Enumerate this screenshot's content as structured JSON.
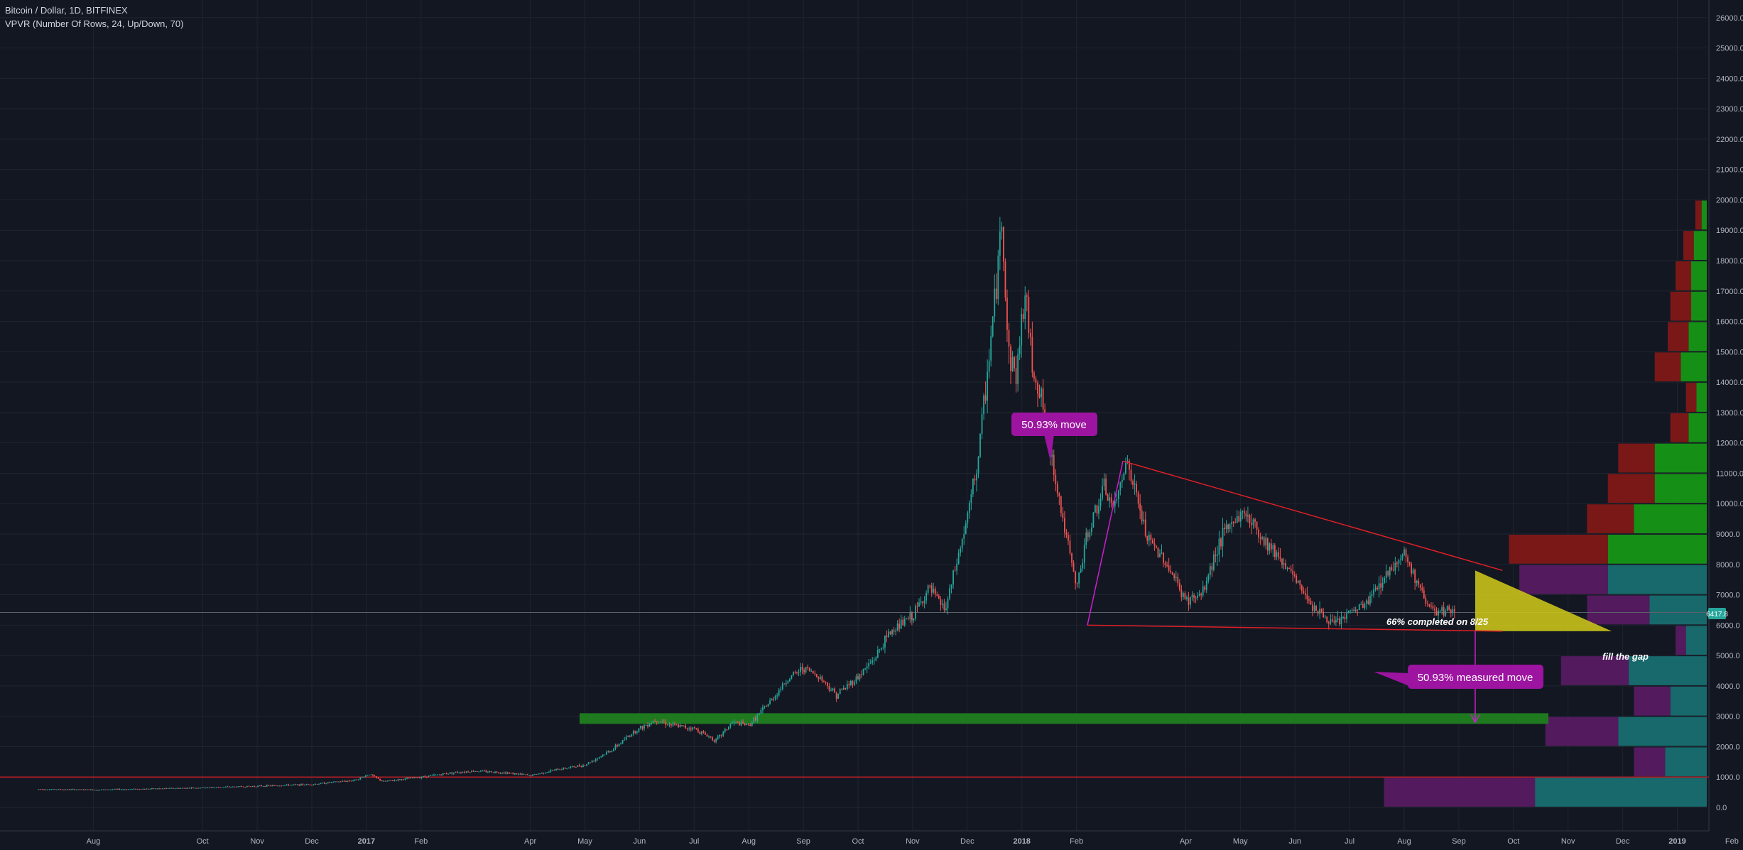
{
  "header": {
    "title": "Bitcoin / Dollar, 1D, BITFINEX",
    "indicator": "VPVR (Number Of Rows, 24, Up/Down, 70)"
  },
  "chart_data": {
    "type": "candlestick",
    "title": "Bitcoin / Dollar, 1D, BITFINEX",
    "ylim": [
      -800,
      26900
    ],
    "y_ticks": [
      0,
      1000,
      2000,
      3000,
      4000,
      5000,
      6000,
      7000,
      8000,
      9000,
      10000,
      11000,
      12000,
      13000,
      14000,
      15000,
      16000,
      17000,
      18000,
      19000,
      20000,
      21000,
      22000,
      23000,
      24000,
      25000,
      26000
    ],
    "x_ticks": [
      {
        "label": "Aug",
        "t": 1.0
      },
      {
        "label": "Oct",
        "t": 3.0
      },
      {
        "label": "Nov",
        "t": 4.0
      },
      {
        "label": "Dec",
        "t": 5.0
      },
      {
        "label": "2017",
        "t": 6.0,
        "bold": true
      },
      {
        "label": "Feb",
        "t": 7.0
      },
      {
        "label": "Apr",
        "t": 9.0
      },
      {
        "label": "May",
        "t": 10.0
      },
      {
        "label": "Jun",
        "t": 11.0
      },
      {
        "label": "Jul",
        "t": 12.0
      },
      {
        "label": "Aug",
        "t": 13.0
      },
      {
        "label": "Sep",
        "t": 14.0
      },
      {
        "label": "Oct",
        "t": 15.0
      },
      {
        "label": "Nov",
        "t": 16.0
      },
      {
        "label": "Dec",
        "t": 17.0
      },
      {
        "label": "2018",
        "t": 18.0,
        "bold": true
      },
      {
        "label": "Feb",
        "t": 19.0
      },
      {
        "label": "Apr",
        "t": 21.0
      },
      {
        "label": "May",
        "t": 22.0
      },
      {
        "label": "Jun",
        "t": 23.0
      },
      {
        "label": "Jul",
        "t": 24.0
      },
      {
        "label": "Aug",
        "t": 25.0
      },
      {
        "label": "Sep",
        "t": 26.0
      },
      {
        "label": "Oct",
        "t": 27.0
      },
      {
        "label": "Nov",
        "t": 28.0
      },
      {
        "label": "Dec",
        "t": 29.0
      },
      {
        "label": "2019",
        "t": 30.0,
        "bold": true
      },
      {
        "label": "Feb",
        "t": 31.0
      }
    ],
    "price_path": [
      [
        0.0,
        600
      ],
      [
        1.0,
        580
      ],
      [
        2.0,
        610
      ],
      [
        3.0,
        650
      ],
      [
        4.0,
        700
      ],
      [
        5.0,
        760
      ],
      [
        5.8,
        900
      ],
      [
        6.05,
        1100
      ],
      [
        6.3,
        850
      ],
      [
        7.0,
        1000
      ],
      [
        7.6,
        1150
      ],
      [
        8.0,
        1200
      ],
      [
        8.5,
        1150
      ],
      [
        9.0,
        1050
      ],
      [
        9.5,
        1250
      ],
      [
        10.0,
        1400
      ],
      [
        10.5,
        1900
      ],
      [
        10.9,
        2500
      ],
      [
        11.3,
        2900
      ],
      [
        11.6,
        2700
      ],
      [
        12.0,
        2600
      ],
      [
        12.4,
        2200
      ],
      [
        12.7,
        2800
      ],
      [
        13.0,
        2700
      ],
      [
        13.4,
        3500
      ],
      [
        13.7,
        4200
      ],
      [
        14.0,
        4600
      ],
      [
        14.3,
        4300
      ],
      [
        14.6,
        3700
      ],
      [
        15.0,
        4300
      ],
      [
        15.3,
        4900
      ],
      [
        15.6,
        5800
      ],
      [
        16.0,
        6300
      ],
      [
        16.3,
        7200
      ],
      [
        16.6,
        6500
      ],
      [
        17.0,
        9500
      ],
      [
        17.2,
        11500
      ],
      [
        17.35,
        14000
      ],
      [
        17.55,
        17500
      ],
      [
        17.63,
        19500
      ],
      [
        17.75,
        15000
      ],
      [
        17.9,
        14200
      ],
      [
        18.05,
        17000
      ],
      [
        18.2,
        14500
      ],
      [
        18.35,
        13500
      ],
      [
        18.6,
        11000
      ],
      [
        18.8,
        9000
      ],
      [
        19.0,
        7200
      ],
      [
        19.2,
        9000
      ],
      [
        19.5,
        10500
      ],
      [
        19.7,
        9800
      ],
      [
        19.9,
        11500
      ],
      [
        20.1,
        10200
      ],
      [
        20.3,
        8800
      ],
      [
        20.6,
        8200
      ],
      [
        21.0,
        6800
      ],
      [
        21.3,
        7000
      ],
      [
        21.6,
        8700
      ],
      [
        21.9,
        9500
      ],
      [
        22.1,
        9700
      ],
      [
        22.4,
        8900
      ],
      [
        22.7,
        8300
      ],
      [
        23.0,
        7500
      ],
      [
        23.4,
        6500
      ],
      [
        23.7,
        6000
      ],
      [
        24.0,
        6400
      ],
      [
        24.3,
        6700
      ],
      [
        24.6,
        7500
      ],
      [
        24.9,
        8200
      ],
      [
        25.0,
        8400
      ],
      [
        25.2,
        7500
      ],
      [
        25.4,
        6800
      ],
      [
        25.6,
        6300
      ],
      [
        25.8,
        6500
      ],
      [
        25.95,
        6400
      ]
    ],
    "overlays": {
      "current_price": "6417.8",
      "horizontal_line": 1000,
      "support_zone": [
        2750,
        3100
      ],
      "descending_trendline": [
        [
          19.85,
          11400
        ],
        [
          26.8,
          7800
        ]
      ],
      "lower_trendline": [
        [
          19.2,
          6000
        ],
        [
          26.8,
          5800
        ]
      ],
      "flag_pole": [
        [
          19.2,
          6000
        ],
        [
          19.85,
          11400
        ]
      ],
      "triangle_fill": [
        [
          26.3,
          7800
        ],
        [
          26.3,
          5800
        ],
        [
          28.8,
          5800
        ]
      ],
      "measured_move_arrow": [
        [
          26.3,
          5800
        ],
        [
          26.3,
          2800
        ]
      ]
    },
    "volume_profile": {
      "bin_size": 1000,
      "rows": [
        {
          "low": 0,
          "high": 1000,
          "up": 0.33,
          "down": 0.29
        },
        {
          "low": 1000,
          "high": 2000,
          "up": 0.08,
          "down": 0.06
        },
        {
          "low": 2000,
          "high": 3000,
          "up": 0.17,
          "down": 0.14
        },
        {
          "low": 3000,
          "high": 4000,
          "up": 0.07,
          "down": 0.07
        },
        {
          "low": 4000,
          "high": 5000,
          "up": 0.15,
          "down": 0.13
        },
        {
          "low": 5000,
          "high": 6000,
          "up": 0.04,
          "down": 0.02
        },
        {
          "low": 6000,
          "high": 7000,
          "up": 0.11,
          "down": 0.12
        },
        {
          "low": 7000,
          "high": 8000,
          "up": 0.19,
          "down": 0.17
        },
        {
          "low": 8000,
          "high": 9000,
          "up": 0.19,
          "down": 0.19
        },
        {
          "low": 9000,
          "high": 10000,
          "up": 0.14,
          "down": 0.09
        },
        {
          "low": 10000,
          "high": 11000,
          "up": 0.1,
          "down": 0.09
        },
        {
          "low": 11000,
          "high": 12000,
          "up": 0.1,
          "down": 0.07
        },
        {
          "low": 12000,
          "high": 13000,
          "up": 0.035,
          "down": 0.035
        },
        {
          "low": 13000,
          "high": 14000,
          "up": 0.02,
          "down": 0.02
        },
        {
          "low": 14000,
          "high": 15000,
          "up": 0.05,
          "down": 0.05
        },
        {
          "low": 15000,
          "high": 16000,
          "up": 0.035,
          "down": 0.04
        },
        {
          "low": 16000,
          "high": 17000,
          "up": 0.03,
          "down": 0.04
        },
        {
          "low": 17000,
          "high": 18000,
          "up": 0.03,
          "down": 0.03
        },
        {
          "low": 18000,
          "high": 19000,
          "up": 0.025,
          "down": 0.02
        },
        {
          "low": 19000,
          "high": 20000,
          "up": 0.01,
          "down": 0.012
        }
      ]
    },
    "annotations": [
      {
        "id": "move",
        "text": "50.93% move"
      },
      {
        "id": "measured",
        "text": "50.93% measured move"
      },
      {
        "id": "completed",
        "text": "66% completed on 8/25"
      },
      {
        "id": "gap",
        "text": "fill the gap"
      }
    ]
  },
  "colors": {
    "background": "#131722",
    "grid": "#1f2430",
    "up": "#26a69a",
    "down": "#ef5350",
    "trendline": "#e01f26",
    "magenta": "#cc1fcc",
    "label_bg": "#9c14a0",
    "support_zone": "#1f7a1f",
    "triangle": "#c9c219",
    "vp_up": "#17696b",
    "vp_down": "#531a5e",
    "vp_up_recent": "#168f16",
    "vp_down_recent": "#7a1818",
    "price_tag": "#26a69a"
  }
}
